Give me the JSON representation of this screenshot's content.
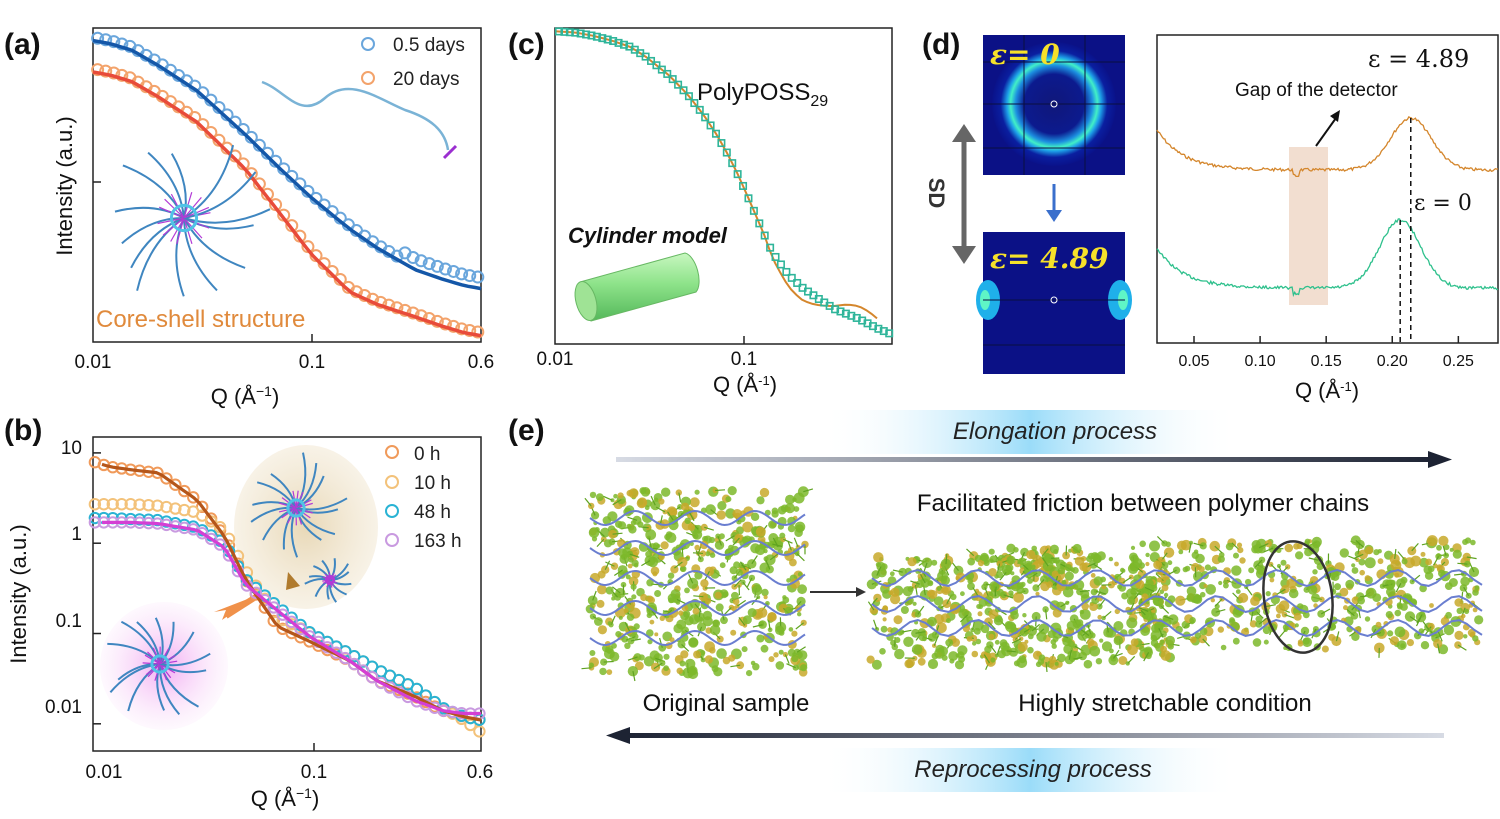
{
  "panel_labels": {
    "a": "(a)",
    "b": "(b)",
    "c": "(c)",
    "d": "(d)",
    "e": "(e)"
  },
  "chart_data": [
    {
      "id": "a",
      "type": "scatter",
      "x_scale": "log",
      "xlabel_base": "Q (Å",
      "xlabel_exp": "−1",
      "xlabel_close": ")",
      "ylabel": "Intensity (a.u.)",
      "x_ticks": [
        "0.01",
        "0.1",
        "0.6"
      ],
      "xlim": [
        0.01,
        0.6
      ],
      "annotation": "Core-shell structure",
      "series": [
        {
          "name": "0.5 days",
          "color": "#6aa6dc",
          "fit_color": "#1457a8",
          "x": [
            0.01,
            0.012,
            0.015,
            0.02,
            0.03,
            0.05,
            0.07,
            0.1,
            0.15,
            0.2,
            0.3,
            0.4,
            0.5,
            0.6
          ],
          "y": [
            0.96,
            0.95,
            0.93,
            0.88,
            0.8,
            0.66,
            0.56,
            0.46,
            0.36,
            0.3,
            0.23,
            0.2,
            0.18,
            0.17
          ]
        },
        {
          "name": "20 days",
          "color": "#f3a36b",
          "fit_color": "#e84b3a",
          "x": [
            0.01,
            0.012,
            0.015,
            0.02,
            0.03,
            0.05,
            0.07,
            0.1,
            0.15,
            0.2,
            0.3,
            0.4,
            0.5,
            0.6
          ],
          "y": [
            0.86,
            0.85,
            0.83,
            0.78,
            0.7,
            0.55,
            0.42,
            0.28,
            0.16,
            0.12,
            0.08,
            0.05,
            0.03,
            0.02
          ]
        }
      ]
    },
    {
      "id": "b",
      "type": "scatter",
      "x_scale": "log",
      "y_scale": "log",
      "xlabel_base": "Q (Å",
      "xlabel_exp": "−1",
      "xlabel_close": ")",
      "ylabel": "Intensity (a.u.)",
      "x_ticks": [
        "0.01",
        "0.1",
        "0.6"
      ],
      "y_ticks": [
        "10",
        "1",
        "0.1",
        "0.01"
      ],
      "xlim": [
        0.01,
        0.6
      ],
      "ylim": [
        0.005,
        15
      ],
      "series": [
        {
          "name": "0 h",
          "color": "#f09a5a",
          "fit_color": "#b5561a",
          "x": [
            0.01,
            0.012,
            0.015,
            0.02,
            0.03,
            0.04,
            0.05,
            0.07,
            0.1,
            0.15,
            0.2,
            0.3,
            0.4,
            0.5,
            0.6
          ],
          "y": [
            8,
            7,
            6.5,
            6,
            3,
            1.2,
            0.4,
            0.12,
            0.08,
            0.05,
            0.03,
            0.02,
            0.014,
            0.012,
            0.011
          ]
        },
        {
          "name": "10 h",
          "color": "#f3c27a",
          "fit_color": "#e0a24a",
          "x": [
            0.01,
            0.012,
            0.015,
            0.02,
            0.03,
            0.04,
            0.05,
            0.07,
            0.1,
            0.15,
            0.2,
            0.3,
            0.4,
            0.5,
            0.6
          ],
          "y": [
            2.7,
            2.7,
            2.7,
            2.6,
            2.2,
            1.4,
            0.5,
            0.15,
            0.1,
            0.06,
            0.04,
            0.025,
            0.015,
            0.011,
            0.008
          ]
        },
        {
          "name": "48 h",
          "color": "#29b3d4",
          "fit_color": "#1a90b8",
          "x": [
            0.01,
            0.012,
            0.015,
            0.02,
            0.03,
            0.04,
            0.05,
            0.07,
            0.1,
            0.15,
            0.2,
            0.3,
            0.4,
            0.5,
            0.6
          ],
          "y": [
            1.9,
            1.9,
            1.85,
            1.8,
            1.5,
            1.0,
            0.4,
            0.2,
            0.1,
            0.06,
            0.04,
            0.025,
            0.015,
            0.012,
            0.011
          ]
        },
        {
          "name": "163 h",
          "color": "#c99ae0",
          "fit_color": "#d43fd4",
          "x": [
            0.01,
            0.012,
            0.015,
            0.02,
            0.03,
            0.04,
            0.05,
            0.07,
            0.1,
            0.15,
            0.2,
            0.3,
            0.4,
            0.5,
            0.6
          ],
          "y": [
            1.7,
            1.7,
            1.7,
            1.65,
            1.4,
            0.9,
            0.35,
            0.18,
            0.09,
            0.05,
            0.03,
            0.018,
            0.014,
            0.013,
            0.013
          ]
        }
      ]
    },
    {
      "id": "c",
      "type": "scatter",
      "x_scale": "log",
      "xlabel_base": "Q (Å",
      "xlabel_exp": "-1",
      "xlabel_close": ")",
      "x_ticks": [
        "0.01",
        "0.1"
      ],
      "xlim": [
        0.01,
        0.6
      ],
      "title_base": "PolyPOSS",
      "title_sub": "29",
      "model_label": "Cylinder model",
      "series": [
        {
          "name": "",
          "color": "#2fb59a",
          "fit_color": "#d4862c",
          "x": [
            0.01,
            0.013,
            0.016,
            0.02,
            0.025,
            0.03,
            0.04,
            0.05,
            0.06,
            0.07,
            0.08,
            0.09,
            0.1,
            0.12,
            0.14,
            0.17,
            0.2,
            0.25,
            0.3,
            0.4,
            0.5,
            0.6
          ],
          "y": [
            0.97,
            0.965,
            0.955,
            0.94,
            0.92,
            0.89,
            0.83,
            0.77,
            0.71,
            0.65,
            0.59,
            0.53,
            0.47,
            0.36,
            0.27,
            0.2,
            0.16,
            0.12,
            0.09,
            0.06,
            0.03,
            0.01
          ]
        }
      ]
    },
    {
      "id": "d",
      "type": "line",
      "xlabel_base": "Q (Å",
      "xlabel_exp": "-1",
      "xlabel_close": ")",
      "x_ticks": [
        "0.05",
        "0.10",
        "0.15",
        "0.20",
        "0.25"
      ],
      "x_tick_values": [
        0.05,
        0.1,
        0.15,
        0.2,
        0.25
      ],
      "xlim": [
        0.022,
        0.28
      ],
      "eps_symbol": "ε",
      "detector_gap_label": "Gap of the detector",
      "series": [
        {
          "name": "ε = 4.89",
          "color": "#d4862c",
          "peak_q": 0.214
        },
        {
          "name": "ε = 0",
          "color": "#2ec08c",
          "peak_q": 0.206
        }
      ]
    }
  ],
  "panel_d": {
    "stretch_label": "SD",
    "saxs_top_label": "ε= 0",
    "saxs_bottom_label": "ε= 4.89",
    "curve_label_top": "ε = 4.89",
    "curve_label_bottom": "ε = 0"
  },
  "panel_e": {
    "elongation": "Elongation process",
    "friction": "Facilitated friction between polymer chains",
    "original": "Original sample",
    "stretchable": "Highly stretchable condition",
    "reprocessing": "Reprocessing process"
  },
  "legend_a": [
    "0.5 days",
    "20 days"
  ],
  "legend_b": [
    "0 h",
    "10 h",
    "48 h",
    "163 h"
  ]
}
